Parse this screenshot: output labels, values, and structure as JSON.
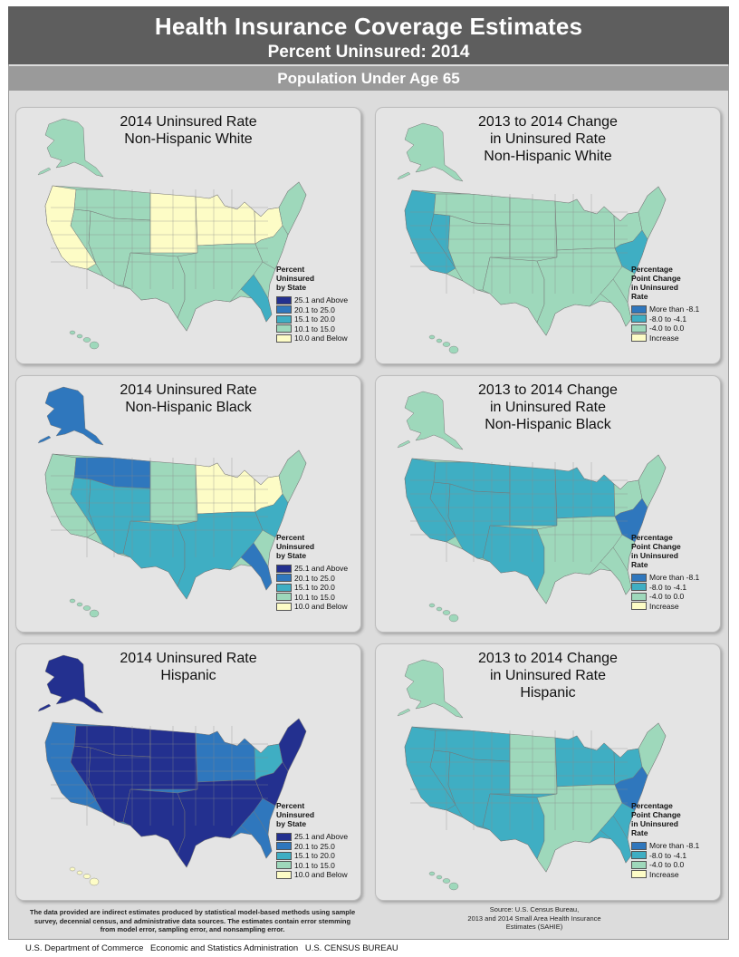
{
  "header": {
    "title": "Health Insurance Coverage Estimates",
    "subtitle": "Percent Uninsured: 2014",
    "population": "Population Under Age 65"
  },
  "legend_rate": {
    "title": [
      "Percent",
      "Uninsured",
      "by State"
    ],
    "items": [
      {
        "label": "25.1 and Above",
        "color": "#23308f"
      },
      {
        "label": "20.1 to 25.0",
        "color": "#2f77bd"
      },
      {
        "label": "15.1 to 20.0",
        "color": "#3faec3"
      },
      {
        "label": "10.1 to 15.0",
        "color": "#9ed8bb"
      },
      {
        "label": "10.0 and Below",
        "color": "#fdfcc6"
      }
    ]
  },
  "legend_change": {
    "title": [
      "Percentage",
      "Point Change",
      "in Uninsured",
      "Rate"
    ],
    "items": [
      {
        "label": "More than -8.1",
        "color": "#2f77bd"
      },
      {
        "label": "-8.0 to -4.1",
        "color": "#3faec3"
      },
      {
        "label": "-4.0 to 0.0",
        "color": "#9ed8bb"
      },
      {
        "label": "Increase",
        "color": "#fdfcc6"
      }
    ]
  },
  "panels": [
    {
      "id": "rate-white",
      "type": "rate",
      "title": [
        "2014 Uninsured Rate",
        "Non-Hispanic White"
      ],
      "base": "#9ed8bb",
      "alaska": "#9ed8bb",
      "hawaii": "#9ed8bb",
      "regions": {
        "west_coast": "#fdfcc6",
        "nevada": "#9ed8bb",
        "northern_rockies": "#9ed8bb",
        "southwest": "#9ed8bb",
        "central_plains": "#fdfcc6",
        "texas": "#9ed8bb",
        "midwest": "#fdfcc6",
        "south": "#9ed8bb",
        "florida": "#3faec3",
        "northeast": "#fdfcc6",
        "new_england": "#9ed8bb",
        "appalachia": "#9ed8bb"
      }
    },
    {
      "id": "change-white",
      "type": "change",
      "title": [
        "2013 to 2014 Change",
        "in Uninsured Rate",
        "Non-Hispanic White"
      ],
      "base": "#9ed8bb",
      "alaska": "#9ed8bb",
      "hawaii": "#9ed8bb",
      "regions": {
        "west_coast": "#3faec3",
        "nevada": "#3faec3",
        "northern_rockies": "#9ed8bb",
        "southwest": "#9ed8bb",
        "central_plains": "#9ed8bb",
        "texas": "#9ed8bb",
        "midwest": "#9ed8bb",
        "south": "#9ed8bb",
        "florida": "#9ed8bb",
        "northeast": "#9ed8bb",
        "new_england": "#9ed8bb",
        "appalachia": "#3faec3"
      }
    },
    {
      "id": "rate-black",
      "type": "rate",
      "title": [
        "2014 Uninsured Rate",
        "Non-Hispanic Black"
      ],
      "base": "#9ed8bb",
      "alaska": "#2f77bd",
      "hawaii": "#9ed8bb",
      "regions": {
        "west_coast": "#9ed8bb",
        "nevada": "#3faec3",
        "northern_rockies": "#2f77bd",
        "southwest": "#3faec3",
        "central_plains": "#9ed8bb",
        "texas": "#3faec3",
        "midwest": "#fdfcc6",
        "south": "#3faec3",
        "florida": "#2f77bd",
        "northeast": "#fdfcc6",
        "new_england": "#9ed8bb",
        "appalachia": "#3faec3"
      }
    },
    {
      "id": "change-black",
      "type": "change",
      "title": [
        "2013 to 2014 Change",
        "in Uninsured Rate",
        "Non-Hispanic Black"
      ],
      "base": "#9ed8bb",
      "alaska": "#9ed8bb",
      "hawaii": "#9ed8bb",
      "regions": {
        "west_coast": "#3faec3",
        "nevada": "#3faec3",
        "northern_rockies": "#3faec3",
        "southwest": "#3faec3",
        "central_plains": "#3faec3",
        "texas": "#3faec3",
        "midwest": "#3faec3",
        "south": "#9ed8bb",
        "florida": "#9ed8bb",
        "northeast": "#9ed8bb",
        "new_england": "#9ed8bb",
        "appalachia": "#2f77bd"
      }
    },
    {
      "id": "rate-hispanic",
      "type": "rate",
      "title": [
        "2014 Uninsured Rate",
        "Hispanic"
      ],
      "base": "#2f77bd",
      "alaska": "#23308f",
      "hawaii": "#fdfcc6",
      "regions": {
        "west_coast": "#2f77bd",
        "nevada": "#23308f",
        "northern_rockies": "#23308f",
        "southwest": "#23308f",
        "central_plains": "#23308f",
        "texas": "#23308f",
        "midwest": "#2f77bd",
        "south": "#23308f",
        "florida": "#2f77bd",
        "northeast": "#3faec3",
        "new_england": "#23308f",
        "appalachia": "#23308f"
      }
    },
    {
      "id": "change-hispanic",
      "type": "change",
      "title": [
        "2013 to 2014 Change",
        "in Uninsured Rate",
        "Hispanic"
      ],
      "base": "#3faec3",
      "alaska": "#9ed8bb",
      "hawaii": "#9ed8bb",
      "regions": {
        "west_coast": "#3faec3",
        "nevada": "#3faec3",
        "northern_rockies": "#3faec3",
        "southwest": "#3faec3",
        "central_plains": "#9ed8bb",
        "texas": "#3faec3",
        "midwest": "#3faec3",
        "south": "#9ed8bb",
        "florida": "#3faec3",
        "northeast": "#3faec3",
        "new_england": "#9ed8bb",
        "appalachia": "#2f77bd"
      }
    }
  ],
  "footnote": "The data provided are indirect estimates produced by statistical model-based methods using sample survey, decennial census, and administrative data sources. The estimates contain error stemming from model error, sampling error, and nonsampling error.",
  "source": [
    "Source: U.S. Census Bureau,",
    "2013 and 2014 Small Area Health Insurance",
    "Estimates (SAHIE)"
  ],
  "credit": [
    "U.S. Department of Commerce",
    "Economic and Statistics Administration",
    "U.S. CENSUS BUREAU"
  ]
}
